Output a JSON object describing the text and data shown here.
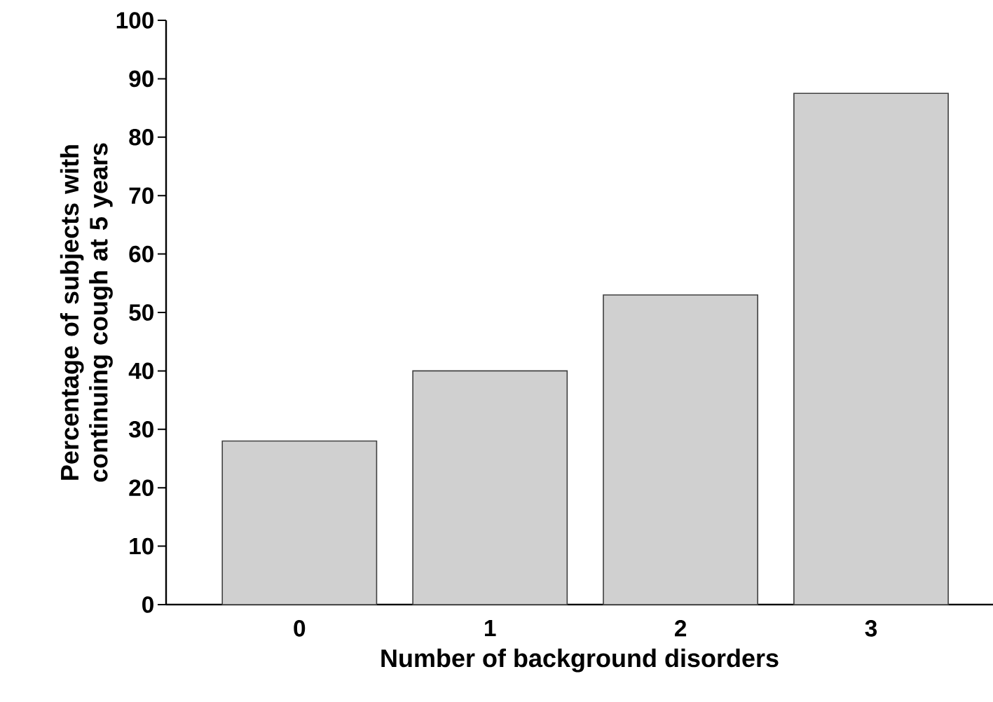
{
  "chart_data": {
    "type": "bar",
    "xlabel": "Number of background disorders",
    "ylabel": "Percentage of subjects with continuing cough at 5 years",
    "categories": [
      "0",
      "1",
      "2",
      "3"
    ],
    "values": [
      28,
      40,
      53,
      87.5
    ],
    "color": "#d0d0d0",
    "ylim": [
      0,
      100
    ],
    "yticks": [
      0,
      10,
      20,
      30,
      40,
      50,
      60,
      70,
      80,
      90,
      100
    ],
    "grid": false
  }
}
